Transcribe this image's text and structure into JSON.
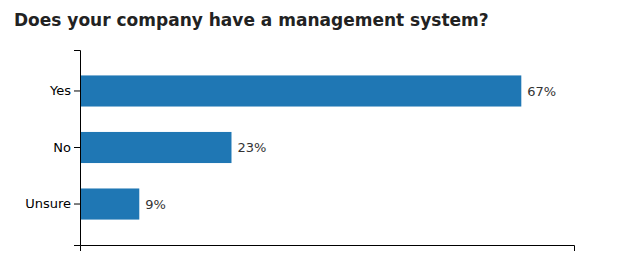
{
  "chart_data": {
    "type": "bar",
    "orientation": "horizontal",
    "title": "Does your company have a management system?",
    "categories": [
      "Yes",
      "No",
      "Unsure"
    ],
    "values": [
      67,
      23,
      9
    ],
    "value_labels": [
      "67%",
      "23%",
      "9%"
    ],
    "data_labels": true,
    "xlim": [
      0,
      75
    ],
    "tick_labels": "y",
    "grid": false
  }
}
